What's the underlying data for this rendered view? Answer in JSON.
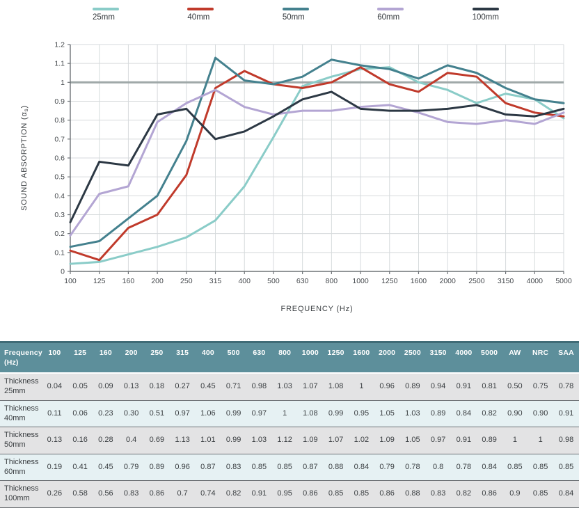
{
  "chart_data": {
    "type": "line",
    "x_categories": [
      "100",
      "125",
      "160",
      "200",
      "250",
      "315",
      "400",
      "500",
      "630",
      "800",
      "1000",
      "1250",
      "1600",
      "2000",
      "2500",
      "3150",
      "4000",
      "5000"
    ],
    "xlabel": "FREQUENCY (Hz)",
    "ylabel": "SOUND ABSORPTION (αs)",
    "ylim": [
      0,
      1.2
    ],
    "yticks": [
      "0",
      "0.1",
      "0.2",
      "0.3",
      "0.4",
      "0.5",
      "0.6",
      "0.7",
      "0.8",
      "0.9",
      "1",
      "1.1",
      "1.2"
    ],
    "reference_line_y": 1.0,
    "grid": true,
    "legend_position": "top",
    "series": [
      {
        "name": "25mm",
        "color": "#8accc8",
        "values": [
          0.04,
          0.05,
          0.09,
          0.13,
          0.18,
          0.27,
          0.45,
          0.71,
          0.98,
          1.03,
          1.07,
          1.08,
          1.0,
          0.96,
          0.89,
          0.94,
          0.91,
          0.81
        ]
      },
      {
        "name": "40mm",
        "color": "#c03a2b",
        "values": [
          0.11,
          0.06,
          0.23,
          0.3,
          0.51,
          0.97,
          1.06,
          0.99,
          0.97,
          1.0,
          1.08,
          0.99,
          0.95,
          1.05,
          1.03,
          0.89,
          0.84,
          0.82
        ]
      },
      {
        "name": "50mm",
        "color": "#44818e",
        "values": [
          0.13,
          0.16,
          0.28,
          0.4,
          0.69,
          1.13,
          1.01,
          0.99,
          1.03,
          1.12,
          1.09,
          1.07,
          1.02,
          1.09,
          1.05,
          0.97,
          0.91,
          0.89
        ]
      },
      {
        "name": "60mm",
        "color": "#b3a5d3",
        "values": [
          0.19,
          0.41,
          0.45,
          0.79,
          0.89,
          0.96,
          0.87,
          0.83,
          0.85,
          0.85,
          0.87,
          0.88,
          0.84,
          0.79,
          0.78,
          0.8,
          0.78,
          0.84
        ]
      },
      {
        "name": "100mm",
        "color": "#2c3844",
        "values": [
          0.26,
          0.58,
          0.56,
          0.83,
          0.86,
          0.7,
          0.74,
          0.82,
          0.91,
          0.95,
          0.86,
          0.85,
          0.85,
          0.86,
          0.88,
          0.83,
          0.82,
          0.86
        ]
      }
    ],
    "style": {
      "grid_color": "#d6dadc",
      "axis_color": "#6e7377",
      "reference_line_color": "#9fa8a8",
      "tick_label_color": "#45494d",
      "axis_title_color": "#3c4043"
    }
  },
  "table": {
    "header_row": [
      "Frequency (Hz)",
      "100",
      "125",
      "160",
      "200",
      "250",
      "315",
      "400",
      "500",
      "630",
      "800",
      "1000",
      "1250",
      "1600",
      "2000",
      "2500",
      "3150",
      "4000",
      "5000",
      "AW",
      "NRC",
      "SAA"
    ],
    "rows": [
      {
        "label": "Thickness 25mm",
        "values": [
          "0.04",
          "0.05",
          "0.09",
          "0.13",
          "0.18",
          "0.27",
          "0.45",
          "0.71",
          "0.98",
          "1.03",
          "1.07",
          "1.08",
          "1",
          "0.96",
          "0.89",
          "0.94",
          "0.91",
          "0.81",
          "0.50",
          "0.75",
          "0.78"
        ]
      },
      {
        "label": "Thickness 40mm",
        "values": [
          "0.11",
          "0.06",
          "0.23",
          "0.30",
          "0.51",
          "0.97",
          "1.06",
          "0.99",
          "0.97",
          "1",
          "1.08",
          "0.99",
          "0.95",
          "1.05",
          "1.03",
          "0.89",
          "0.84",
          "0.82",
          "0.90",
          "0.90",
          "0.91"
        ]
      },
      {
        "label": "Thickness 50mm",
        "values": [
          "0.13",
          "0.16",
          "0.28",
          "0.4",
          "0.69",
          "1.13",
          "1.01",
          "0.99",
          "1.03",
          "1.12",
          "1.09",
          "1.07",
          "1.02",
          "1.09",
          "1.05",
          "0.97",
          "0.91",
          "0.89",
          "1",
          "1",
          "0.98"
        ]
      },
      {
        "label": "Thickness 60mm",
        "values": [
          "0.19",
          "0.41",
          "0.45",
          "0.79",
          "0.89",
          "0.96",
          "0.87",
          "0.83",
          "0.85",
          "0.85",
          "0.87",
          "0.88",
          "0.84",
          "0.79",
          "0.78",
          "0.8",
          "0.78",
          "0.84",
          "0.85",
          "0.85",
          "0.85"
        ]
      },
      {
        "label": "Thickness 100mm",
        "values": [
          "0.26",
          "0.58",
          "0.56",
          "0.83",
          "0.86",
          "0.7",
          "0.74",
          "0.82",
          "0.91",
          "0.95",
          "0.86",
          "0.85",
          "0.85",
          "0.86",
          "0.88",
          "0.83",
          "0.82",
          "0.86",
          "0.9",
          "0.85",
          "0.84"
        ]
      }
    ],
    "colors": {
      "header_bg": "#5d8f9b",
      "header_top_border": "#3f6b76",
      "stripe_gray": "#e3e3e4",
      "stripe_blue": "#e6f1f3"
    }
  }
}
